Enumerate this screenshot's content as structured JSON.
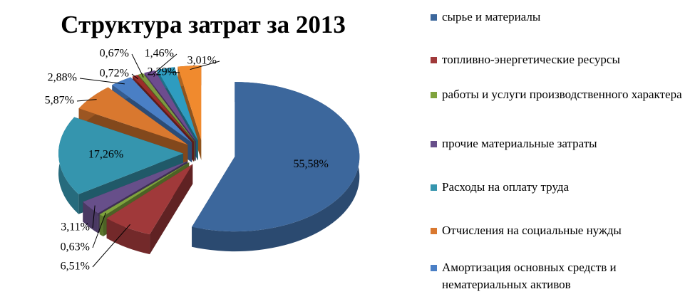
{
  "chart_data": {
    "type": "pie",
    "title": "Структура затрат за 2013",
    "categories": [
      "сырье и материалы",
      "топливно-энергетические ресурсы",
      "работы и услуги производственного характера",
      "прочие материальные затраты",
      "Расходы на оплату труда",
      "Отчисления на социальные нужды",
      "Амортизация основных средств и нематериальных активов",
      null,
      null,
      null,
      null,
      null
    ],
    "values": [
      55.58,
      6.51,
      0.63,
      3.11,
      17.26,
      5.87,
      2.88,
      0.72,
      0.67,
      1.46,
      2.29,
      3.01
    ],
    "value_labels": [
      "55,58%",
      "6,51%",
      "0,63%",
      "3,11%",
      "17,26%",
      "5,87%",
      "2,88%",
      "0,72%",
      "0,67%",
      "1,46%",
      "2,29%",
      "3,01%"
    ],
    "colors": [
      "#3C679C",
      "#A0393A",
      "#7FA33D",
      "#674F8A",
      "#3595AE",
      "#D9782F",
      "#4A7FC5",
      "#9B2D2A",
      "#7E9A3E",
      "#6D4C8E",
      "#2E9CC0",
      "#F08A2E"
    ]
  }
}
